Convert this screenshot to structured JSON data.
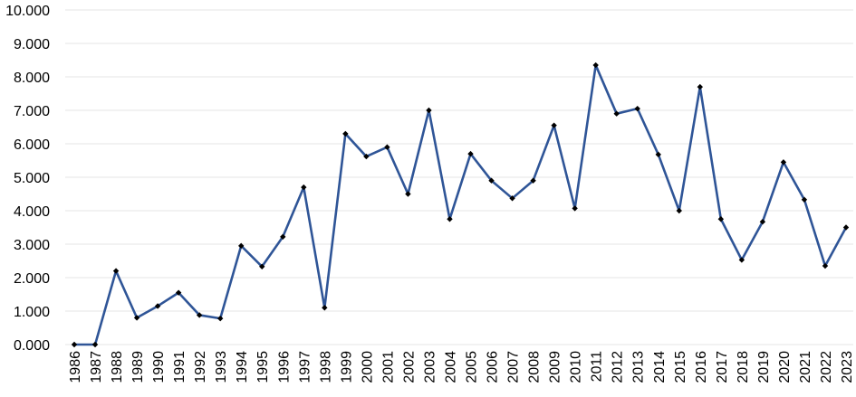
{
  "chart_data": {
    "type": "line",
    "title": "",
    "xlabel": "",
    "ylabel": "",
    "ylim": [
      0,
      10
    ],
    "yticks": [
      "0.000",
      "1.000",
      "2.000",
      "3.000",
      "4.000",
      "5.000",
      "6.000",
      "7.000",
      "8.000",
      "9.000",
      "10.000"
    ],
    "grid": true,
    "legend": "none",
    "colors": {
      "line": "#2F5597",
      "marker": "#000000",
      "grid": "#E6E6E6"
    },
    "categories": [
      "1986",
      "1987",
      "1988",
      "1989",
      "1990",
      "1991",
      "1992",
      "1993",
      "1994",
      "1995",
      "1996",
      "1997",
      "1998",
      "1999",
      "2000",
      "2001",
      "2002",
      "2003",
      "2004",
      "2005",
      "2006",
      "2007",
      "2008",
      "2009",
      "2010",
      "2011",
      "2012",
      "2013",
      "2014",
      "2015",
      "2016",
      "2017",
      "2018",
      "2019",
      "2020",
      "2021",
      "2022",
      "2023"
    ],
    "series": [
      {
        "values": [
          0.0,
          0.0,
          2.2,
          0.8,
          1.15,
          1.55,
          0.88,
          0.78,
          2.95,
          2.33,
          3.22,
          4.7,
          1.1,
          6.3,
          5.62,
          5.9,
          4.5,
          7.0,
          3.75,
          5.7,
          4.9,
          4.37,
          4.9,
          6.55,
          4.07,
          8.35,
          6.9,
          7.05,
          5.68,
          4.0,
          7.7,
          3.75,
          2.53,
          3.67,
          5.45,
          4.33,
          2.35,
          3.5
        ]
      }
    ]
  }
}
